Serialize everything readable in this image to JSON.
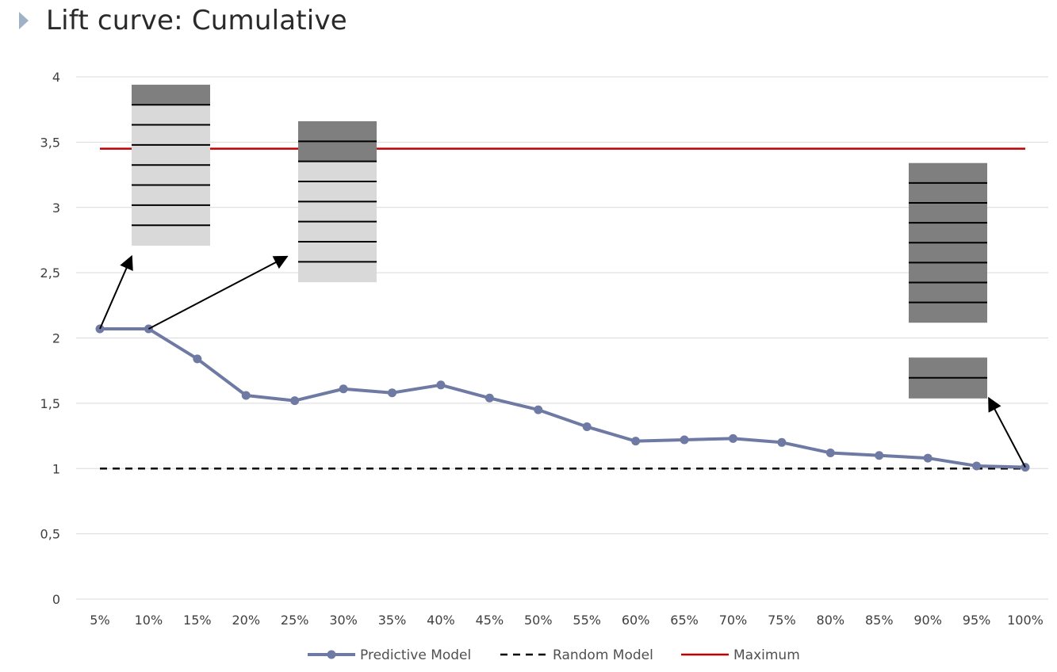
{
  "slide": {
    "title": "Lift curve: Cumulative"
  },
  "chart_data": {
    "type": "line",
    "title": "",
    "xlabel": "",
    "ylabel": "",
    "categories": [
      "5%",
      "10%",
      "15%",
      "20%",
      "25%",
      "30%",
      "35%",
      "40%",
      "45%",
      "50%",
      "55%",
      "60%",
      "65%",
      "70%",
      "75%",
      "80%",
      "85%",
      "90%",
      "95%",
      "100%"
    ],
    "yticks": [
      "0",
      "0,5",
      "1",
      "1,5",
      "2",
      "2,5",
      "3",
      "3,5",
      "4"
    ],
    "ylim": [
      0,
      4
    ],
    "grid": true,
    "legend_position": "bottom",
    "series": [
      {
        "name": "Predictive Model",
        "style": "line-with-markers",
        "color": "#6e7aa3",
        "values": [
          2.07,
          2.07,
          1.84,
          1.56,
          1.52,
          1.61,
          1.58,
          1.64,
          1.54,
          1.45,
          1.32,
          1.21,
          1.22,
          1.23,
          1.2,
          1.12,
          1.1,
          1.08,
          1.02,
          1.01
        ]
      },
      {
        "name": "Random Model",
        "style": "dashed",
        "color": "#000000",
        "values": [
          1,
          1,
          1,
          1,
          1,
          1,
          1,
          1,
          1,
          1,
          1,
          1,
          1,
          1,
          1,
          1,
          1,
          1,
          1,
          1
        ]
      },
      {
        "name": "Maximum",
        "style": "solid",
        "color": "#c00000",
        "values": [
          3.45,
          3.45,
          3.45,
          3.45,
          3.45,
          3.45,
          3.45,
          3.45,
          3.45,
          3.45,
          3.45,
          3.45,
          3.45,
          3.45,
          3.45,
          3.45,
          3.45,
          3.45,
          3.45,
          3.45
        ]
      }
    ],
    "annotations": [
      {
        "kind": "stacked-blocks",
        "arrow_from_category": "5%",
        "dark_rows": 1,
        "light_rows": 7,
        "top_value": 3.94,
        "bottom_value": 2.71
      },
      {
        "kind": "stacked-blocks",
        "arrow_from_category": "10%",
        "dark_rows": 2,
        "light_rows": 6,
        "top_value": 3.66,
        "bottom_value": 2.43
      },
      {
        "kind": "stacked-blocks",
        "arrow_from_category": "100%",
        "dark_rows": 8,
        "light_rows": 0,
        "top_value": 3.34,
        "bottom_value": 2.12
      },
      {
        "kind": "stacked-blocks",
        "arrow_from_category": "100%",
        "dark_rows": 2,
        "light_rows": 0,
        "top_value": 1.85,
        "bottom_value": 1.54
      }
    ],
    "colors": {
      "dark_block": "#7f7f7f",
      "light_block": "#d9d9d9",
      "grid": "#d9d9d9"
    }
  }
}
